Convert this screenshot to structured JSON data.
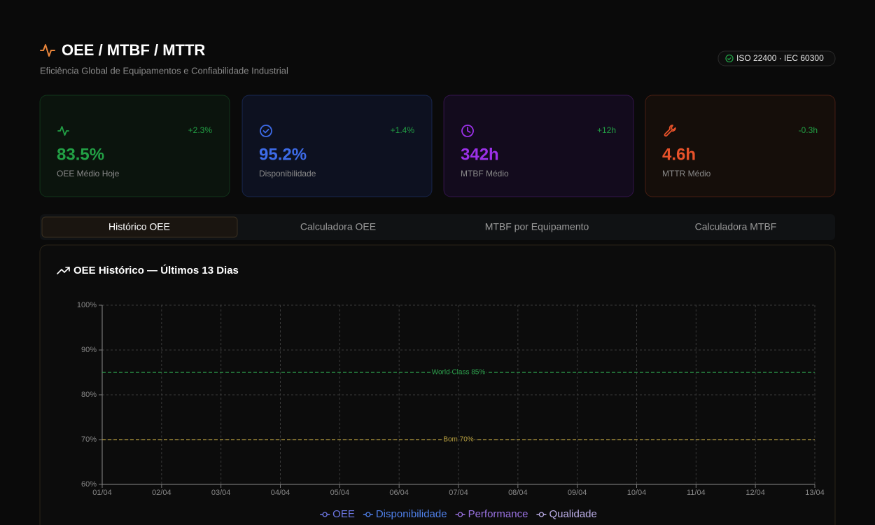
{
  "header": {
    "title": "OEE / MTBF / MTTR",
    "subtitle": "Eficiência Global de Equipamentos e Confiabilidade Industrial",
    "badge": "ISO 22400 · IEC 60300"
  },
  "kpis": [
    {
      "value": "83.5%",
      "label": "OEE Médio Hoje",
      "change": "+2.3%",
      "color": "#22a045"
    },
    {
      "value": "95.2%",
      "label": "Disponibilidade",
      "change": "+1.4%",
      "color": "#3d6be8"
    },
    {
      "value": "342h",
      "label": "MTBF Médio",
      "change": "+12h",
      "color": "#9b30e8"
    },
    {
      "value": "4.6h",
      "label": "MTTR Médio",
      "change": "-0.3h",
      "color": "#e8522a"
    }
  ],
  "tabs": [
    "Histórico OEE",
    "Calculadora OEE",
    "MTBF por Equipamento",
    "Calculadora MTBF"
  ],
  "active_tab": 0,
  "chart_data": {
    "type": "line",
    "title": "OEE Histórico — Últimos 13 Dias",
    "categories": [
      "01/04",
      "02/04",
      "03/04",
      "04/04",
      "05/04",
      "06/04",
      "07/04",
      "08/04",
      "09/04",
      "10/04",
      "11/04",
      "12/04",
      "13/04"
    ],
    "series": [
      {
        "name": "OEE",
        "color": "#6e78e6",
        "values": [
          null,
          null,
          null,
          null,
          null,
          null,
          null,
          null,
          null,
          null,
          null,
          null,
          null
        ]
      },
      {
        "name": "Disponibilidade",
        "color": "#4f80ea",
        "values": [
          null,
          null,
          null,
          null,
          null,
          null,
          null,
          null,
          null,
          null,
          null,
          null,
          null
        ]
      },
      {
        "name": "Performance",
        "color": "#9a72e2",
        "values": [
          null,
          null,
          null,
          null,
          null,
          null,
          null,
          null,
          null,
          null,
          null,
          null,
          null
        ]
      },
      {
        "name": "Qualidade",
        "color": "#bcaee8",
        "values": [
          null,
          null,
          null,
          null,
          null,
          null,
          null,
          null,
          null,
          null,
          null,
          null,
          null
        ]
      }
    ],
    "ylim": [
      60,
      100
    ],
    "yticks": [
      {
        "value": 60,
        "label": "60%"
      },
      {
        "value": 70,
        "label": "70%"
      },
      {
        "value": 80,
        "label": "80%"
      },
      {
        "value": 90,
        "label": "90%"
      },
      {
        "value": 100,
        "label": "100%"
      }
    ],
    "grid": true,
    "reference_lines": [
      {
        "value": 85,
        "label": "World Class 85%",
        "color": "#2ea44f"
      },
      {
        "value": 70,
        "label": "Bom 70%",
        "color": "#b8a040"
      }
    ]
  }
}
